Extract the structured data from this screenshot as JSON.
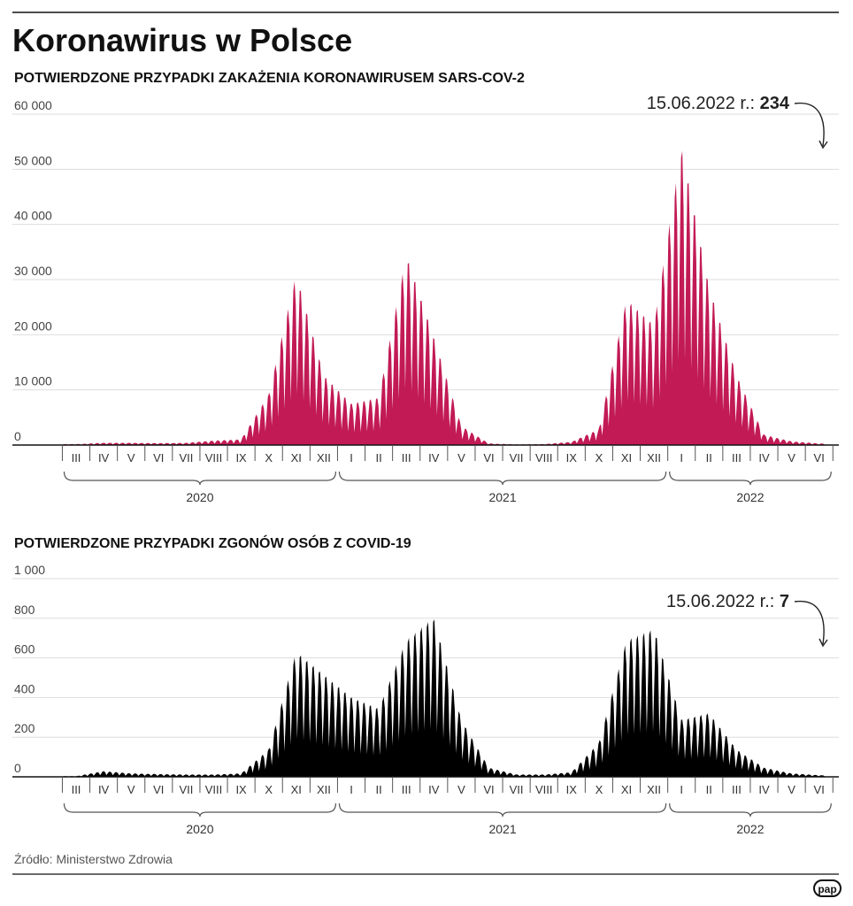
{
  "title": "Koronawirus w Polsce",
  "source": "Źródło: Ministerstwo Zdrowia",
  "logo": "pap",
  "colors": {
    "cases": "#c21a55",
    "deaths": "#000000",
    "grid": "#dddddd",
    "axis": "#111111"
  },
  "chart_data": [
    {
      "type": "area",
      "title": "POTWIERDZONE PRZYPADKI ZAKAŻENIA KORONAWIRUSEM SARS-COV-2",
      "ylim": [
        0,
        60000
      ],
      "yticks": [
        "60 000",
        "50 000",
        "40 000",
        "30 000",
        "20 000",
        "10 000",
        "0"
      ],
      "months": [
        "III",
        "IV",
        "V",
        "VI",
        "VII",
        "VIII",
        "IX",
        "X",
        "XI",
        "XII",
        "I",
        "II",
        "III",
        "IV",
        "V",
        "VI",
        "VII",
        "VIII",
        "IX",
        "X",
        "XI",
        "XII",
        "I",
        "II",
        "III",
        "IV",
        "V",
        "VI"
      ],
      "years": [
        "2020",
        "2021",
        "2022"
      ],
      "annotation": {
        "label": "15.06.2022 r.: ",
        "value": "234"
      },
      "series": [
        {
          "color": "#c21a55",
          "x": [
            "2020-03",
            "2020-04",
            "2020-05",
            "2020-06",
            "2020-07",
            "2020-08",
            "2020-09",
            "2020-10",
            "2020-11",
            "2020-12",
            "2021-01",
            "2021-02",
            "2021-03",
            "2021-04",
            "2021-05",
            "2021-06",
            "2021-07",
            "2021-08",
            "2021-09",
            "2021-10",
            "2021-11",
            "2021-12",
            "2022-01",
            "2022-02",
            "2022-03",
            "2022-04",
            "2022-05",
            "2022-06"
          ],
          "values": [
            150,
            350,
            350,
            300,
            350,
            700,
            900,
            8000,
            27000,
            11000,
            6500,
            7500,
            30000,
            17000,
            3000,
            250,
            100,
            150,
            500,
            2500,
            23000,
            19000,
            47000,
            25000,
            11000,
            1600,
            600,
            234
          ]
        }
      ]
    },
    {
      "type": "area",
      "title": "POTWIERDZONE PRZYPADKI ZGONÓW OSÓB Z COVID-19",
      "ylim": [
        0,
        1000
      ],
      "yticks": [
        "1 000",
        "800",
        "600",
        "400",
        "200",
        "0"
      ],
      "months": [
        "III",
        "IV",
        "V",
        "VI",
        "VII",
        "VIII",
        "IX",
        "X",
        "XI",
        "XII",
        "I",
        "II",
        "III",
        "IV",
        "V",
        "VI",
        "VII",
        "VIII",
        "IX",
        "X",
        "XI",
        "XII",
        "I",
        "II",
        "III",
        "IV",
        "V",
        "VI"
      ],
      "years": [
        "2020",
        "2021",
        "2022"
      ],
      "annotation": {
        "label": "15.06.2022 r.: ",
        "value": "7"
      },
      "series": [
        {
          "color": "#000000",
          "x": [
            "2020-03",
            "2020-04",
            "2020-05",
            "2020-06",
            "2020-07",
            "2020-08",
            "2020-09",
            "2020-10",
            "2020-11",
            "2020-12",
            "2021-01",
            "2021-02",
            "2021-03",
            "2021-04",
            "2021-05",
            "2021-06",
            "2021-07",
            "2021-08",
            "2021-09",
            "2021-10",
            "2021-11",
            "2021-12",
            "2022-01",
            "2022-02",
            "2022-03",
            "2022-04",
            "2022-05",
            "2022-06"
          ],
          "values": [
            3,
            25,
            15,
            12,
            10,
            10,
            15,
            120,
            550,
            450,
            350,
            300,
            600,
            700,
            250,
            40,
            10,
            10,
            20,
            150,
            600,
            650,
            250,
            280,
            120,
            40,
            15,
            7
          ]
        }
      ]
    }
  ]
}
